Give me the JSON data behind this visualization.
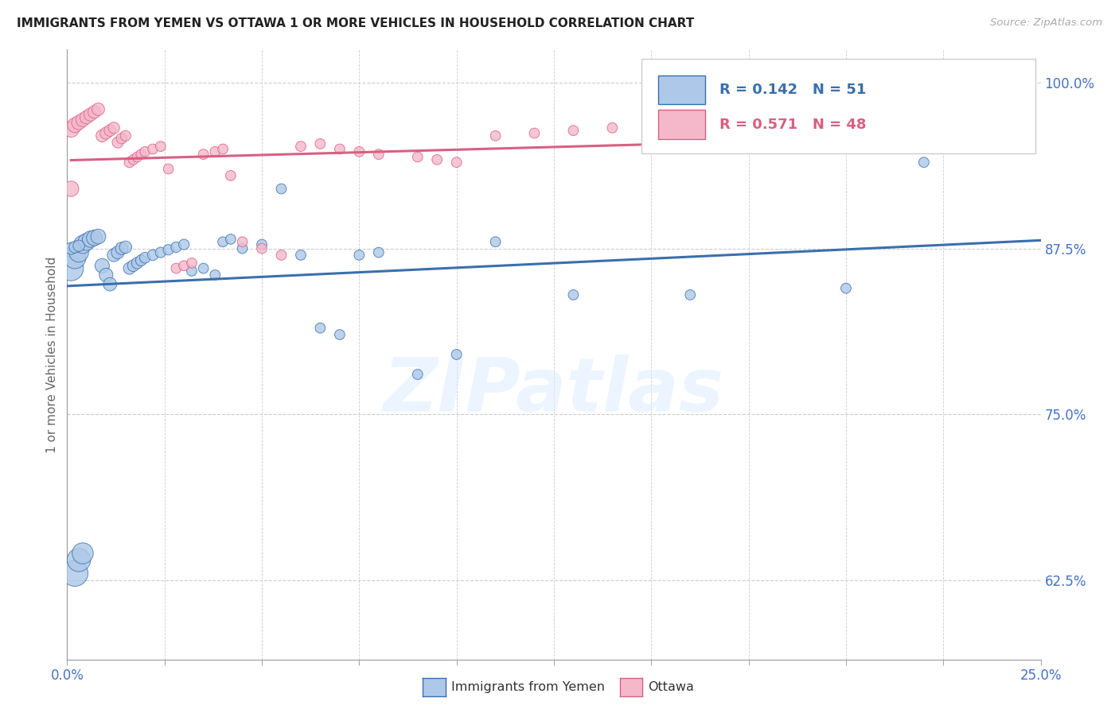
{
  "title": "IMMIGRANTS FROM YEMEN VS OTTAWA 1 OR MORE VEHICLES IN HOUSEHOLD CORRELATION CHART",
  "source": "Source: ZipAtlas.com",
  "ylabel": "1 or more Vehicles in Household",
  "yticks": [
    "62.5%",
    "75.0%",
    "87.5%",
    "100.0%"
  ],
  "ytick_vals": [
    0.625,
    0.75,
    0.875,
    1.0
  ],
  "legend1_label": "Immigrants from Yemen",
  "legend2_label": "Ottawa",
  "R1": 0.142,
  "N1": 51,
  "R2": 0.571,
  "N2": 48,
  "color_blue": "#adc8e8",
  "color_pink": "#f5b8cb",
  "trendline_blue": "#3a6fad",
  "trendline_pink": "#d95f82",
  "blue_points": [
    [
      0.001,
      0.86
    ],
    [
      0.002,
      0.868
    ],
    [
      0.003,
      0.872
    ],
    [
      0.004,
      0.878
    ],
    [
      0.005,
      0.88
    ],
    [
      0.006,
      0.882
    ],
    [
      0.007,
      0.883
    ],
    [
      0.008,
      0.884
    ],
    [
      0.009,
      0.862
    ],
    [
      0.01,
      0.855
    ],
    [
      0.011,
      0.848
    ],
    [
      0.012,
      0.87
    ],
    [
      0.013,
      0.872
    ],
    [
      0.014,
      0.875
    ],
    [
      0.015,
      0.876
    ],
    [
      0.016,
      0.86
    ],
    [
      0.017,
      0.862
    ],
    [
      0.018,
      0.864
    ],
    [
      0.019,
      0.866
    ],
    [
      0.02,
      0.868
    ],
    [
      0.022,
      0.87
    ],
    [
      0.024,
      0.872
    ],
    [
      0.026,
      0.874
    ],
    [
      0.028,
      0.876
    ],
    [
      0.03,
      0.878
    ],
    [
      0.032,
      0.858
    ],
    [
      0.035,
      0.86
    ],
    [
      0.038,
      0.855
    ],
    [
      0.04,
      0.88
    ],
    [
      0.042,
      0.882
    ],
    [
      0.045,
      0.875
    ],
    [
      0.05,
      0.878
    ],
    [
      0.055,
      0.92
    ],
    [
      0.06,
      0.87
    ],
    [
      0.065,
      0.815
    ],
    [
      0.07,
      0.81
    ],
    [
      0.075,
      0.87
    ],
    [
      0.08,
      0.872
    ],
    [
      0.09,
      0.78
    ],
    [
      0.1,
      0.795
    ],
    [
      0.11,
      0.88
    ],
    [
      0.13,
      0.84
    ],
    [
      0.002,
      0.63
    ],
    [
      0.003,
      0.64
    ],
    [
      0.004,
      0.645
    ],
    [
      0.001,
      0.875
    ],
    [
      0.002,
      0.876
    ],
    [
      0.003,
      0.877
    ],
    [
      0.16,
      0.84
    ],
    [
      0.2,
      0.845
    ],
    [
      0.22,
      0.94
    ]
  ],
  "blue_sizes": [
    180,
    140,
    110,
    95,
    85,
    78,
    72,
    65,
    60,
    55,
    52,
    50,
    48,
    46,
    44,
    42,
    40,
    38,
    36,
    34,
    34,
    32,
    32,
    32,
    32,
    30,
    30,
    30,
    30,
    30,
    30,
    30,
    30,
    30,
    30,
    30,
    30,
    30,
    30,
    30,
    30,
    30,
    200,
    160,
    130,
    42,
    40,
    38,
    30,
    30,
    30
  ],
  "pink_points": [
    [
      0.001,
      0.965
    ],
    [
      0.002,
      0.968
    ],
    [
      0.003,
      0.97
    ],
    [
      0.004,
      0.972
    ],
    [
      0.005,
      0.974
    ],
    [
      0.006,
      0.976
    ],
    [
      0.007,
      0.978
    ],
    [
      0.008,
      0.98
    ],
    [
      0.009,
      0.96
    ],
    [
      0.01,
      0.962
    ],
    [
      0.011,
      0.964
    ],
    [
      0.012,
      0.966
    ],
    [
      0.013,
      0.955
    ],
    [
      0.014,
      0.958
    ],
    [
      0.015,
      0.96
    ],
    [
      0.016,
      0.94
    ],
    [
      0.017,
      0.942
    ],
    [
      0.018,
      0.944
    ],
    [
      0.019,
      0.946
    ],
    [
      0.02,
      0.948
    ],
    [
      0.022,
      0.95
    ],
    [
      0.024,
      0.952
    ],
    [
      0.026,
      0.935
    ],
    [
      0.028,
      0.86
    ],
    [
      0.03,
      0.862
    ],
    [
      0.032,
      0.864
    ],
    [
      0.035,
      0.946
    ],
    [
      0.038,
      0.948
    ],
    [
      0.04,
      0.95
    ],
    [
      0.042,
      0.93
    ],
    [
      0.045,
      0.88
    ],
    [
      0.05,
      0.875
    ],
    [
      0.055,
      0.87
    ],
    [
      0.06,
      0.952
    ],
    [
      0.065,
      0.954
    ],
    [
      0.07,
      0.95
    ],
    [
      0.075,
      0.948
    ],
    [
      0.08,
      0.946
    ],
    [
      0.09,
      0.944
    ],
    [
      0.095,
      0.942
    ],
    [
      0.1,
      0.94
    ],
    [
      0.11,
      0.96
    ],
    [
      0.12,
      0.962
    ],
    [
      0.13,
      0.964
    ],
    [
      0.14,
      0.966
    ],
    [
      0.15,
      0.968
    ],
    [
      0.2,
      1.0
    ],
    [
      0.001,
      0.92
    ]
  ],
  "pink_sizes": [
    75,
    65,
    60,
    55,
    52,
    50,
    48,
    46,
    44,
    42,
    40,
    38,
    36,
    34,
    32,
    32,
    30,
    30,
    30,
    30,
    30,
    30,
    30,
    30,
    30,
    30,
    30,
    30,
    30,
    30,
    30,
    30,
    30,
    30,
    30,
    30,
    30,
    30,
    30,
    30,
    30,
    30,
    30,
    30,
    30,
    30,
    30,
    70
  ],
  "xlim": [
    0.0,
    0.25
  ],
  "ylim": [
    0.565,
    1.025
  ],
  "watermark_text": "ZIPatlas",
  "background_color": "#ffffff"
}
